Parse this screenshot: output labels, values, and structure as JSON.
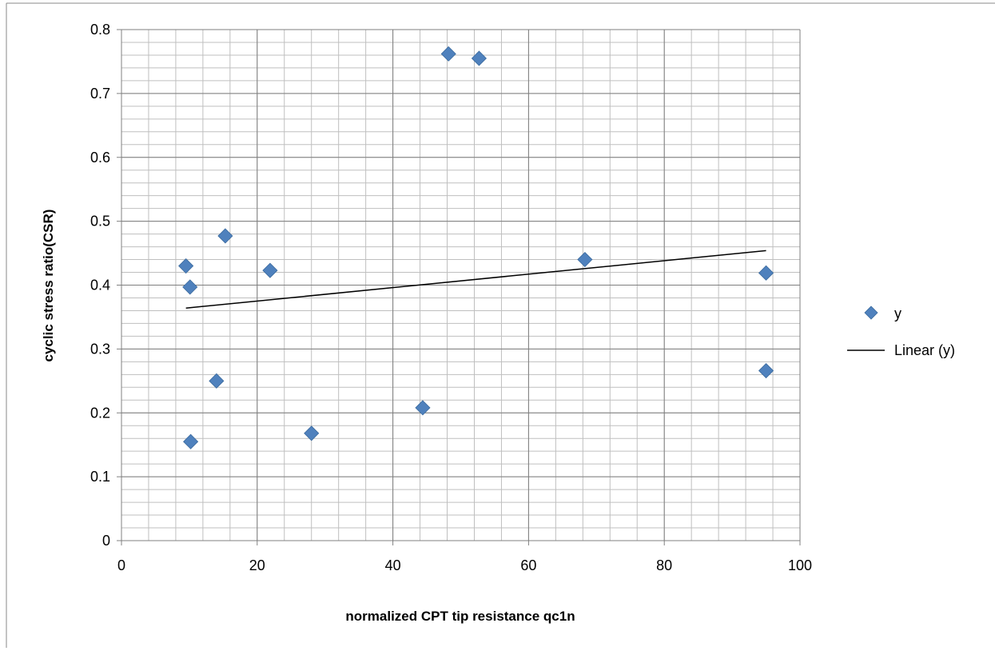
{
  "chart_data": {
    "type": "scatter",
    "title": "",
    "xlabel": "normalized CPT tip resistance qc1n",
    "ylabel": "cyclic stress ratio(CSR)",
    "xlim": [
      0,
      100
    ],
    "ylim": [
      0,
      0.8
    ],
    "x_ticks": [
      0,
      20,
      40,
      60,
      80,
      100
    ],
    "y_ticks": [
      0,
      0.1,
      0.2,
      0.3,
      0.4,
      0.5,
      0.6,
      0.7,
      0.8
    ],
    "x_tick_labels": [
      "0",
      "20",
      "40",
      "60",
      "80",
      "100"
    ],
    "y_tick_labels": [
      "0",
      "0.1",
      "0.2",
      "0.3",
      "0.4",
      "0.5",
      "0.6",
      "0.7",
      "0.8"
    ],
    "grid": {
      "major": true,
      "minor": true,
      "x_minor_step": 4,
      "y_minor_step": 0.02
    },
    "legend_position": "right",
    "series": [
      {
        "name": "y",
        "marker": "diamond",
        "color": "#4f81bd",
        "points": [
          {
            "x": 9.5,
            "y": 0.43
          },
          {
            "x": 10.1,
            "y": 0.397
          },
          {
            "x": 10.2,
            "y": 0.155
          },
          {
            "x": 14.0,
            "y": 0.25
          },
          {
            "x": 15.3,
            "y": 0.477
          },
          {
            "x": 21.9,
            "y": 0.423
          },
          {
            "x": 28.0,
            "y": 0.168
          },
          {
            "x": 44.4,
            "y": 0.208
          },
          {
            "x": 48.2,
            "y": 0.762
          },
          {
            "x": 52.7,
            "y": 0.755
          },
          {
            "x": 68.3,
            "y": 0.44
          },
          {
            "x": 95.0,
            "y": 0.419
          },
          {
            "x": 95.0,
            "y": 0.266
          }
        ]
      },
      {
        "name": "Linear (y)",
        "type": "line",
        "color": "#000000",
        "points": [
          {
            "x": 9.5,
            "y": 0.364
          },
          {
            "x": 95.0,
            "y": 0.454
          }
        ]
      }
    ]
  }
}
